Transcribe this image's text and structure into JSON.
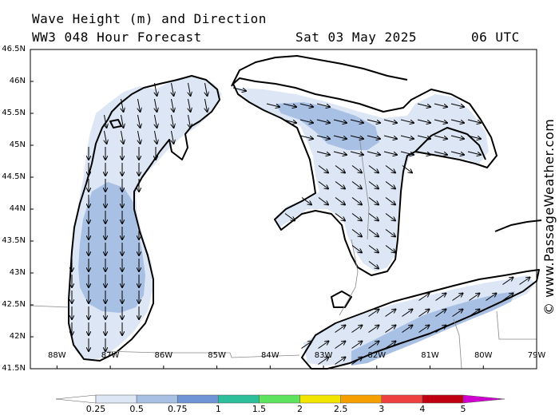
{
  "title": {
    "line1": "Wave Height (m) and Direction",
    "line2": "WW3 048 Hour Forecast",
    "date": "Sat 03 May 2025",
    "time": "06 UTC"
  },
  "watermark": "© www.PassageWeather.com",
  "map": {
    "lat_labels": [
      "46.5N",
      "46N",
      "45.5N",
      "45N",
      "44.5N",
      "44N",
      "43.5N",
      "43N",
      "42.5N",
      "42N",
      "41.5N"
    ],
    "lon_labels": [
      "88W",
      "87W",
      "86W",
      "85W",
      "84W",
      "83W",
      "82W",
      "81W",
      "80W",
      "79W"
    ],
    "lat_range": [
      41.5,
      46.5
    ],
    "lon_range": [
      -88.5,
      -79.0
    ],
    "water_color": "#ffffff",
    "land_color": "#ffffff",
    "wave_colors": {
      "lt_0_25": "#ffffff",
      "0_25_0_5": "#dde6f5",
      "0_5_0_75": "#a7c0e4"
    }
  },
  "colorbar": {
    "ticks": [
      "0.25",
      "0.5",
      "0.75",
      "1",
      "1.5",
      "2",
      "2.5",
      "3",
      "4",
      "5"
    ],
    "colors": [
      "#ffffff",
      "#dde6f5",
      "#a7c0e4",
      "#6f95d6",
      "#2dbf9c",
      "#5ee35e",
      "#f2e500",
      "#f5a000",
      "#ef4040",
      "#c00010",
      "#d000d0"
    ]
  }
}
